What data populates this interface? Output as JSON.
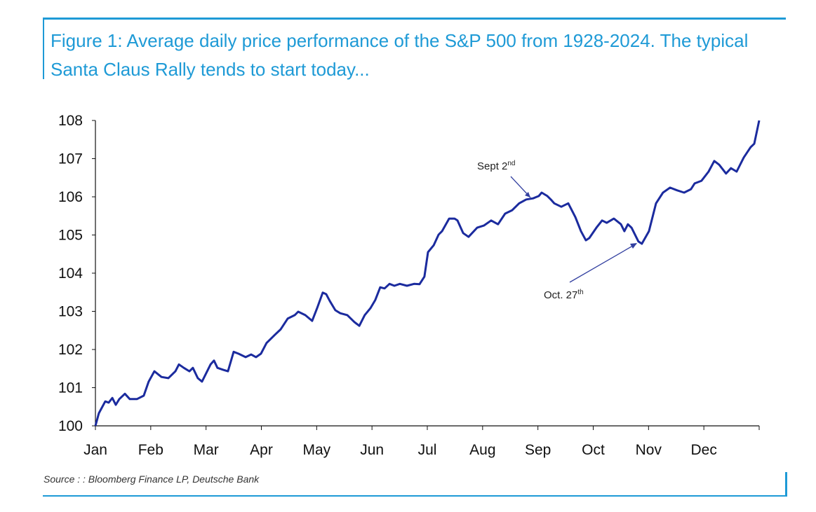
{
  "chart_data": {
    "type": "line",
    "title": "Figure 1: Average daily price performance of the S&P 500 from 1928-2024. The typical Santa Claus Rally tends to start today...",
    "xlabel": "",
    "ylabel": "",
    "ylim": [
      100,
      108
    ],
    "xlim": [
      0,
      365
    ],
    "yticks": [
      "100",
      "101",
      "102",
      "103",
      "104",
      "105",
      "106",
      "107",
      "108"
    ],
    "xticks": [
      "Jan",
      "Feb",
      "Mar",
      "Apr",
      "May",
      "Jun",
      "Jul",
      "Aug",
      "Sep",
      "Oct",
      "Nov",
      "Dec"
    ],
    "grid": false,
    "line_color": "#1b2b9e",
    "series": [
      {
        "name": "S&P 500 average daily price performance",
        "x": [
          0,
          1.9,
          5.4,
          7.3,
          9.3,
          11.2,
          13.1,
          16.2,
          18.9,
          22.8,
          26.6,
          29.3,
          32.4,
          36.3,
          40.1,
          44.0,
          45.9,
          48.6,
          51.7,
          53.6,
          56.3,
          58.6,
          63.3,
          65.2,
          67.1,
          70.2,
          72.9,
          76.0,
          78.7,
          82.6,
          85.6,
          88.3,
          91.0,
          94.1,
          98.8,
          101.9,
          105.7,
          109.6,
          111.5,
          115.4,
          119.2,
          121.9,
          125.0,
          126.9,
          128.9,
          131.9,
          134.6,
          138.5,
          142.4,
          145.1,
          148.1,
          151.2,
          153.9,
          156.6,
          159.0,
          161.7,
          164.4,
          167.4,
          171.3,
          175.2,
          178.2,
          180.9,
          182.9,
          186.0,
          188.7,
          190.6,
          194.5,
          197.5,
          199.1,
          202.2,
          205.2,
          209.9,
          213.7,
          217.6,
          221.4,
          225.3,
          229.2,
          233.0,
          236.9,
          240.7,
          243.8,
          245.4,
          248.5,
          250.4,
          252.3,
          256.2,
          260.0,
          263.9,
          267.0,
          269.7,
          271.6,
          275.5,
          278.6,
          281.2,
          285.1,
          289.0,
          290.9,
          292.8,
          294.8,
          298.6,
          300.5,
          304.4,
          308.3,
          312.1,
          316.0,
          319.8,
          323.7,
          327.5,
          329.5,
          333.3,
          337.2,
          340.3,
          343.0,
          346.8,
          349.5,
          352.6,
          356.5,
          360.3,
          362.3,
          365
        ],
        "y": [
          100,
          100.33,
          100.64,
          100.61,
          100.73,
          100.55,
          100.7,
          100.84,
          100.7,
          100.7,
          100.79,
          101.16,
          101.43,
          101.28,
          101.25,
          101.43,
          101.61,
          101.52,
          101.43,
          101.52,
          101.25,
          101.16,
          101.61,
          101.71,
          101.52,
          101.47,
          101.43,
          101.94,
          101.89,
          101.8,
          101.87,
          101.8,
          101.89,
          102.17,
          102.39,
          102.53,
          102.81,
          102.9,
          102.99,
          102.9,
          102.75,
          103.08,
          103.49,
          103.45,
          103.27,
          103.03,
          102.95,
          102.9,
          102.72,
          102.62,
          102.9,
          103.08,
          103.3,
          103.63,
          103.6,
          103.72,
          103.67,
          103.72,
          103.67,
          103.72,
          103.71,
          103.91,
          104.55,
          104.73,
          105.01,
          105.1,
          105.43,
          105.43,
          105.38,
          105.05,
          104.95,
          105.19,
          105.25,
          105.38,
          105.28,
          105.56,
          105.65,
          105.83,
          105.93,
          105.96,
          106.02,
          106.11,
          106.02,
          105.93,
          105.83,
          105.74,
          105.83,
          105.47,
          105.1,
          104.86,
          104.92,
          105.19,
          105.38,
          105.32,
          105.43,
          105.28,
          105.1,
          105.28,
          105.19,
          104.83,
          104.77,
          105.1,
          105.83,
          106.11,
          106.24,
          106.17,
          106.11,
          106.2,
          106.35,
          106.42,
          106.66,
          106.94,
          106.84,
          106.61,
          106.75,
          106.66,
          107.03,
          107.3,
          107.39,
          108
        ]
      }
    ],
    "annotations": [
      {
        "text": "Sept 2",
        "suffix": "nd",
        "x": 244,
        "y": 106.0
      },
      {
        "text": "Oct. 27",
        "suffix": "th",
        "x": 300,
        "y": 104.77
      }
    ],
    "source": "Source : : Bloomberg Finance LP, Deutsche Bank"
  }
}
